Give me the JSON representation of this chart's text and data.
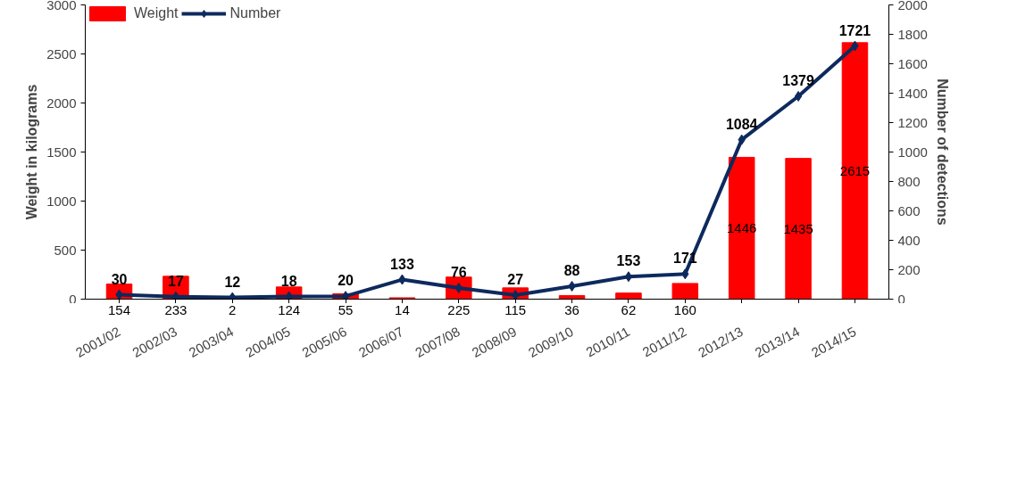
{
  "chart_data": {
    "type": "bar",
    "ylabel": "Weight in kilograms",
    "y2label": "Number of detections",
    "categories": [
      "2001/02",
      "2002/03",
      "2003/04",
      "2004/05",
      "2005/06",
      "2006/07",
      "2007/08",
      "2008/09",
      "2009/10",
      "2010/11",
      "2011/12",
      "2012/13",
      "2013/14",
      "2014/15"
    ],
    "series": [
      {
        "name": "Weight",
        "color": "#ff0000",
        "values": [
          154,
          233,
          2,
          124,
          55,
          14,
          225,
          115,
          36,
          62,
          160,
          1446,
          1435,
          2615
        ]
      },
      {
        "name": "Number",
        "type": "line",
        "axis": "y2",
        "color": "#0d2a5e",
        "marker": "diamond",
        "values": [
          30,
          17,
          12,
          18,
          20,
          133,
          76,
          27,
          88,
          153,
          171,
          1084,
          1379,
          1721
        ]
      }
    ],
    "ylim": [
      0,
      3000
    ],
    "yticks": [
      0,
      500,
      1000,
      1500,
      2000,
      2500,
      3000
    ],
    "y2lim": [
      0,
      2000
    ],
    "y2ticks": [
      0,
      200,
      400,
      600,
      800,
      1000,
      1200,
      1400,
      1600,
      1800,
      2000
    ],
    "data_labels": true,
    "grid": false,
    "legend": "top left"
  }
}
